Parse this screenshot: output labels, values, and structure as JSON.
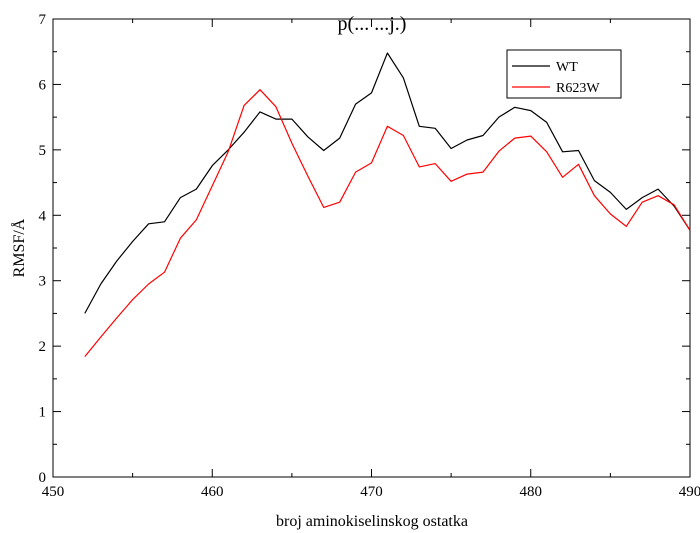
{
  "chart_data": {
    "type": "line",
    "title": "p(... ...j.)",
    "xlabel": "broj aminokiselinskog ostatka",
    "ylabel": "RMSF/Å",
    "xlim": [
      450,
      490
    ],
    "ylim": [
      0,
      7
    ],
    "xticks": [
      450,
      460,
      470,
      480,
      490
    ],
    "yticks": [
      0,
      1,
      2,
      3,
      4,
      5,
      6,
      7
    ],
    "x_tick_labels": [
      "450",
      "460",
      "470",
      "480",
      "490"
    ],
    "y_tick_labels": [
      "0",
      "1",
      "2",
      "3",
      "4",
      "5",
      "6",
      "7"
    ],
    "legend_position": "top-right",
    "grid": false,
    "x": [
      452,
      453,
      454,
      455,
      456,
      457,
      458,
      459,
      460,
      461,
      462,
      463,
      464,
      465,
      466,
      467,
      468,
      469,
      470,
      471,
      472,
      473,
      474,
      475,
      476,
      477,
      478,
      479,
      480,
      481,
      482,
      483,
      484,
      485,
      486,
      487,
      488,
      489,
      490
    ],
    "series": [
      {
        "name": "WT",
        "color": "#000000",
        "values": [
          2.5,
          2.95,
          3.3,
          3.6,
          3.87,
          3.9,
          4.27,
          4.4,
          4.76,
          5.0,
          5.27,
          5.58,
          5.47,
          5.47,
          5.2,
          4.99,
          5.18,
          5.7,
          5.87,
          6.48,
          6.1,
          5.36,
          5.33,
          5.02,
          5.15,
          5.22,
          5.5,
          5.65,
          5.6,
          5.42,
          4.97,
          4.99,
          4.53,
          4.35,
          4.09,
          4.27,
          4.4,
          4.14,
          3.77
        ]
      },
      {
        "name": "R623W",
        "color": "#ff0000",
        "values": [
          1.84,
          2.14,
          2.43,
          2.71,
          2.95,
          3.13,
          3.65,
          3.93,
          4.45,
          4.97,
          5.68,
          5.92,
          5.66,
          5.1,
          4.6,
          4.12,
          4.2,
          4.66,
          4.8,
          5.36,
          5.22,
          4.74,
          4.79,
          4.52,
          4.63,
          4.66,
          4.98,
          5.18,
          5.21,
          4.97,
          4.58,
          4.78,
          4.3,
          4.02,
          3.83,
          4.2,
          4.3,
          4.16,
          3.77
        ]
      }
    ]
  }
}
